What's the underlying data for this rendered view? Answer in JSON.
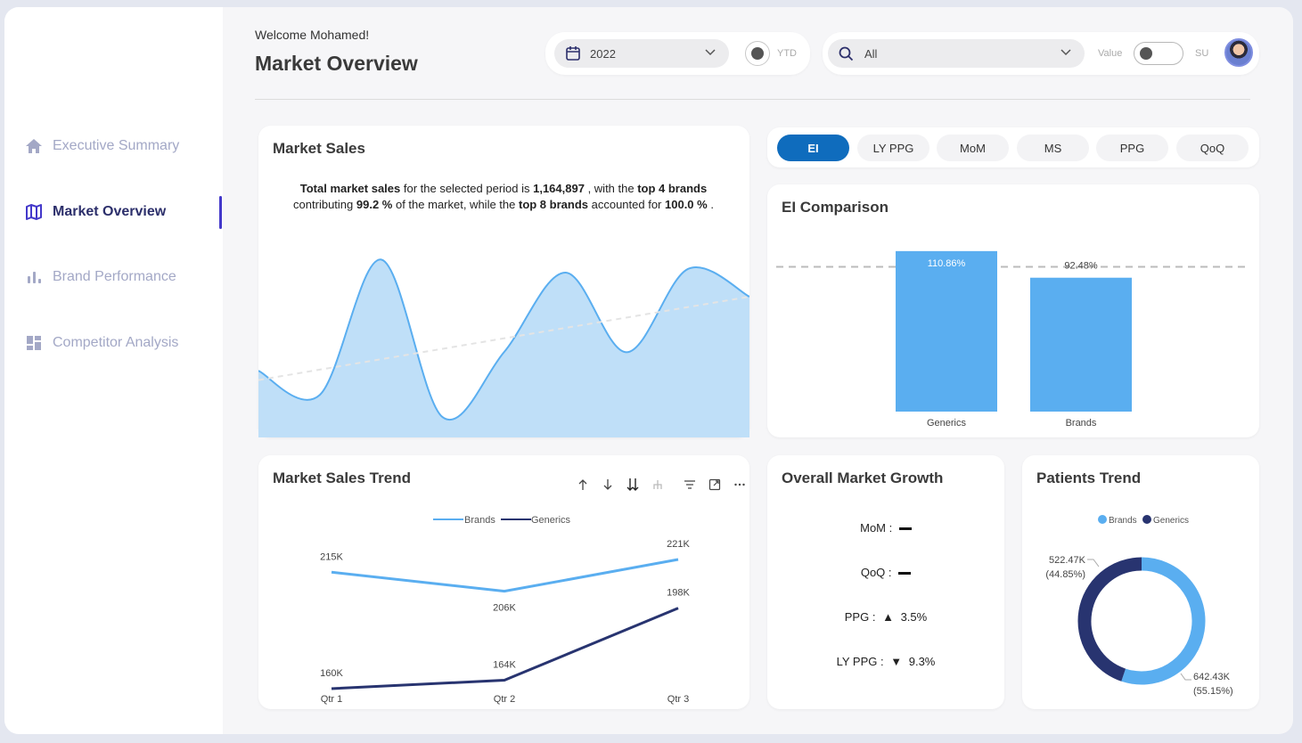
{
  "header": {
    "welcome": "Welcome Mohamed!",
    "title": "Market Overview",
    "year_value": "2022",
    "ytd_label": "YTD",
    "search_value": "All",
    "value_label": "Value",
    "su_label": "SU"
  },
  "sidebar": {
    "items": [
      {
        "label": "Executive Summary",
        "icon": "home-icon"
      },
      {
        "label": "Market Overview",
        "icon": "map-icon",
        "active": true
      },
      {
        "label": "Brand Performance",
        "icon": "bar-chart-icon"
      },
      {
        "label": "Competitor Analysis",
        "icon": "dashboard-icon"
      }
    ]
  },
  "market_sales": {
    "title": "Market Sales",
    "summary": {
      "t1": "Total market sales",
      "t2": " for the selected period is ",
      "total": "1,164,897",
      "t3": " , with the ",
      "top4": "top 4 brands",
      "t4": "contributing ",
      "pct4": "99.2 %",
      "t5": " of the market, while the ",
      "top8": "top 8 brands",
      "t6": " accounted for ",
      "pct8": "100.0 %",
      "t7": " ."
    }
  },
  "tabs": [
    "EI",
    "LY PPG",
    "MoM",
    "MS",
    "PPG",
    "QoQ"
  ],
  "ei_comparison": {
    "title": "EI Comparison"
  },
  "trend": {
    "title": "Market Sales Trend",
    "legend": [
      "Brands",
      "Generics"
    ]
  },
  "growth": {
    "title": "Overall Market Growth",
    "mom_label": "MoM :",
    "qoq_label": "QoQ :",
    "ppg_label": "PPG :",
    "ppg_value": "3.5%",
    "lyppg_label": "LY PPG :",
    "lyppg_value": "9.3%"
  },
  "patients": {
    "title": "Patients Trend",
    "legend": [
      "Brands",
      "Generics"
    ]
  },
  "colors": {
    "accent": "#0f6cbd",
    "brands": "#5aaef0",
    "generics": "#283470",
    "nav_active": "#2c2f6b",
    "indicator": "#4338ca"
  },
  "chart_data": [
    {
      "type": "bar",
      "title": "EI Comparison",
      "categories": [
        "Generics",
        "Brands"
      ],
      "values": [
        110.86,
        92.48
      ],
      "value_labels": [
        "110.86%",
        "92.48%"
      ],
      "ylim": [
        0,
        120
      ],
      "reference_line": 100
    },
    {
      "type": "line",
      "title": "Market Sales Trend",
      "categories": [
        "Qtr 1",
        "Qtr 2",
        "Qtr 3"
      ],
      "series": [
        {
          "name": "Brands",
          "values": [
            215,
            206,
            221
          ],
          "labels": [
            "215K",
            "206K",
            "221K"
          ]
        },
        {
          "name": "Generics",
          "values": [
            160,
            164,
            198
          ],
          "labels": [
            "160K",
            "164K",
            "198K"
          ]
        }
      ]
    },
    {
      "type": "pie",
      "title": "Patients Trend",
      "series": [
        {
          "name": "Brands",
          "value": 642.43,
          "label": "642.43K",
          "pct_label": "(55.15%)"
        },
        {
          "name": "Generics",
          "value": 522.47,
          "label": "522.47K",
          "pct_label": "(44.85%)"
        }
      ]
    },
    {
      "type": "area",
      "title": "Market Sales",
      "values": [
        0.35,
        0.22,
        0.95,
        0.1,
        0.45,
        0.88,
        0.45,
        0.9,
        0.75
      ],
      "trend_line": [
        0.3,
        0.75
      ]
    }
  ]
}
